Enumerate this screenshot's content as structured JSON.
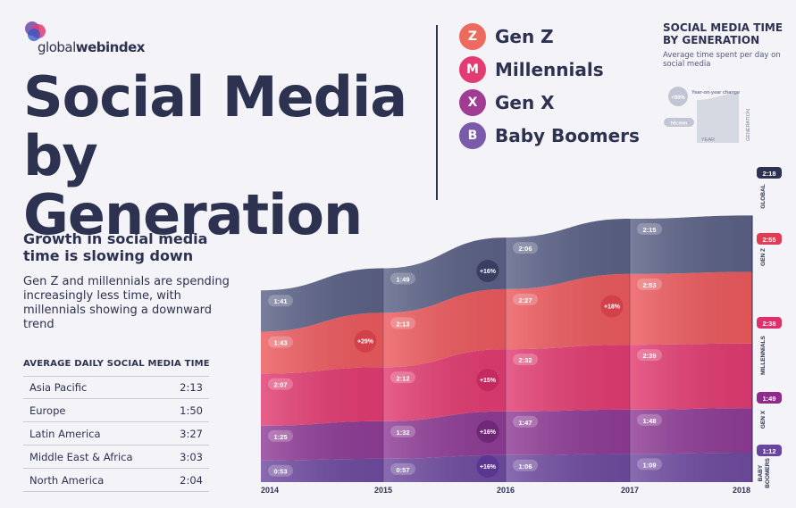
{
  "brand": {
    "logo_text_light": "global",
    "logo_text_bold": "webindex"
  },
  "title": "Social Media by Generation",
  "legend": [
    {
      "letter": "Z",
      "label": "Gen Z",
      "color": "#e8655b"
    },
    {
      "letter": "M",
      "label": "Millennials",
      "color": "#e23c72"
    },
    {
      "letter": "X",
      "label": "Gen X",
      "color": "#9c3c92"
    },
    {
      "letter": "B",
      "label": "Baby Boomers",
      "color": "#7a53a8"
    }
  ],
  "key": {
    "title": "SOCIAL MEDIA TIME BY GENERATION",
    "subtitle": "Average time spent per day on social media",
    "badge_label": "+00%",
    "badge_desc": "Year-on-year change",
    "time_label": "hh:mm",
    "axis_x": "YEAR",
    "axis_y": "GENERATION"
  },
  "subhead": "Growth in social media time is slowing down",
  "body": "Gen Z and millennials are spending increasingly less time, with millennials showing a downward trend",
  "table": {
    "title": "AVERAGE DAILY SOCIAL MEDIA TIME",
    "rows": [
      {
        "region": "Asia Pacific",
        "time": "2:13"
      },
      {
        "region": "Europe",
        "time": "1:50"
      },
      {
        "region": "Latin America",
        "time": "3:27"
      },
      {
        "region": "Middle East & Africa",
        "time": "3:03"
      },
      {
        "region": "North America",
        "time": "2:04"
      }
    ]
  },
  "chart_data": {
    "type": "area",
    "stacked": true,
    "x": [
      "2014",
      "2015",
      "2016",
      "2017",
      "2018"
    ],
    "series": [
      {
        "name": "BABY BOOMERS",
        "color": "#6f4ba0",
        "values": [
          "0:53",
          "0:57",
          "1:06",
          "1:09",
          "1:12"
        ],
        "minutes": [
          53,
          57,
          66,
          69,
          72
        ]
      },
      {
        "name": "GEN X",
        "color": "#8f3c96",
        "values": [
          "1:25",
          "1:32",
          "1:47",
          "1:48",
          "1:49"
        ],
        "minutes": [
          85,
          92,
          107,
          108,
          109
        ]
      },
      {
        "name": "MILLENNIALS",
        "color": "#e23c72",
        "values": [
          "2:07",
          "2:12",
          "2:32",
          "2:39",
          "2:38"
        ],
        "minutes": [
          127,
          132,
          152,
          159,
          158
        ]
      },
      {
        "name": "GEN Z",
        "color": "#ec5a5e",
        "values": [
          "1:43",
          "2:13",
          "2:27",
          "2:53",
          "2:55"
        ],
        "minutes": [
          103,
          133,
          147,
          173,
          175
        ]
      },
      {
        "name": "GLOBAL",
        "color": "#5c6287",
        "values": [
          "1:41",
          "1:49",
          "2:06",
          "2:15",
          "2:18"
        ],
        "minutes": [
          101,
          109,
          126,
          135,
          138
        ]
      }
    ],
    "changes": [
      {
        "series": "GEN Z",
        "between": [
          "2014",
          "2015"
        ],
        "label": "+29%",
        "color": "#d2404a"
      },
      {
        "series": "GEN Z",
        "between": [
          "2016",
          "2017"
        ],
        "label": "+18%",
        "color": "#d2404a"
      },
      {
        "series": "GLOBAL",
        "between": [
          "2015",
          "2016"
        ],
        "label": "+16%",
        "color": "#3a3f62"
      },
      {
        "series": "MILLENNIALS",
        "between": [
          "2015",
          "2016"
        ],
        "label": "+15%",
        "color": "#c42a5f"
      },
      {
        "series": "GEN X",
        "between": [
          "2015",
          "2016"
        ],
        "label": "+16%",
        "color": "#6e2877"
      },
      {
        "series": "BABY BOOMERS",
        "between": [
          "2015",
          "2016"
        ],
        "label": "+16%",
        "color": "#5a3690"
      }
    ],
    "end_labels": [
      {
        "series": "GLOBAL",
        "value": "2:18",
        "color": "#2d3250"
      },
      {
        "series": "GEN Z",
        "value": "2:55",
        "color": "#e23c54"
      },
      {
        "series": "MILLENNIALS",
        "value": "2:38",
        "color": "#e0306c"
      },
      {
        "series": "GEN X",
        "value": "1:49",
        "color": "#8f2a8c"
      },
      {
        "series": "BABY BOOMERS",
        "value": "1:12",
        "color": "#6a45a0"
      }
    ],
    "side_labels": [
      "GLOBAL",
      "GEN Z",
      "MILLENNIALS",
      "GEN X",
      "BABY BOOMERS"
    ]
  }
}
